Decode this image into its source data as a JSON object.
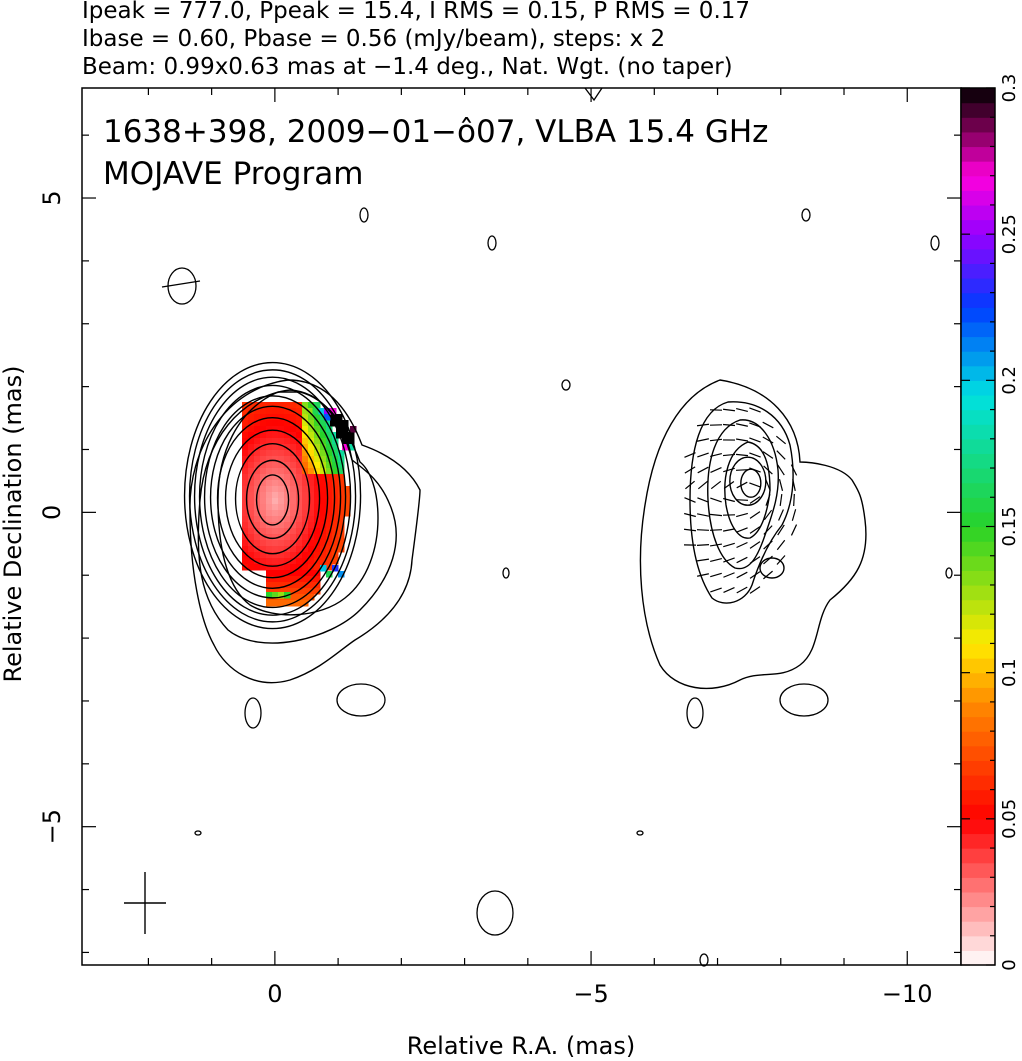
{
  "header": {
    "line1": "Ipeak = 777.0, Ppeak = 15.4, I RMS = 0.15, P RMS = 0.17",
    "line2": "Ibase = 0.60, Pbase = 0.56 (mJy/beam), steps: x 2",
    "line3": "Beam: 0.99x0.63 mas at −1.4 deg., Nat. Wgt. (no taper)"
  },
  "overlay": {
    "line1": "1638+398, 2009−01−ô07, VLBA 15.4 GHz",
    "line2": "MOJAVE Program"
  },
  "chart_data": {
    "type": "heatmap",
    "title": "1638+398, 2009−01−ô07, VLBA 15.4 GHz",
    "subtitle": "MOJAVE Program",
    "xlabel": "Relative R.A. (mas)",
    "ylabel": "Relative Declination (mas)",
    "xlim": [
      3.05,
      -10.85
    ],
    "ylim": [
      -7.2,
      6.75
    ],
    "x_ticks": [
      {
        "value": 0,
        "label": "0"
      },
      {
        "value": -5,
        "label": "−5"
      },
      {
        "value": -10,
        "label": "−10"
      }
    ],
    "y_ticks": [
      {
        "value": 5,
        "label": "5"
      },
      {
        "value": 0,
        "label": "0"
      },
      {
        "value": -5,
        "label": "−5"
      }
    ],
    "colorbar": {
      "range": [
        0,
        0.3
      ],
      "ticks": [
        {
          "value": 0,
          "label": "0"
        },
        {
          "value": 0.05,
          "label": "0.05"
        },
        {
          "value": 0.1,
          "label": "0.1"
        },
        {
          "value": 0.15,
          "label": "0.15"
        },
        {
          "value": 0.2,
          "label": "0.2"
        },
        {
          "value": 0.25,
          "label": "0.25"
        },
        {
          "value": 0.3,
          "label": "0.3"
        }
      ]
    },
    "panels": [
      {
        "name": "total intensity with fractional polarization",
        "center_ra": 0.1,
        "center_dec": 0.15
      },
      {
        "name": "total intensity with EVPA sticks",
        "center_ra": -7.4,
        "center_dec": 0.4
      }
    ],
    "beam": {
      "major_mas": 0.99,
      "minor_mas": 0.63,
      "pa_deg": -1.4
    }
  }
}
